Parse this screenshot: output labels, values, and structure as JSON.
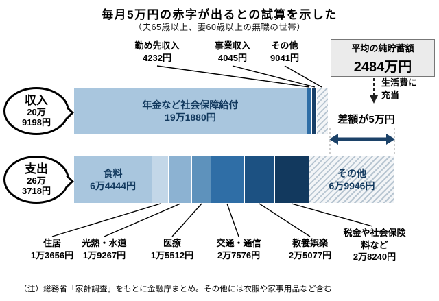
{
  "title": "毎月5万円の赤字が出るとの試算を示した",
  "subtitle": "（夫65歳以上、妻60歳以上の無職の世帯）",
  "note": "（注）総務省「家計調査」をもとに金融庁まとめ。その他には衣服や家事用品など含む",
  "savings": {
    "label": "平均の純貯蓄額",
    "value": "2484万円",
    "arrow_note_line1": "生活費に",
    "arrow_note_line2": "充当"
  },
  "gap": {
    "label": "差額が5万円"
  },
  "chart_data": {
    "type": "bar",
    "title": "毎月5万円の赤字が出るとの試算を示した",
    "unit": "円（月額）",
    "accent_colors": {
      "arrow_navy": "#1c4268",
      "bar_light_blue": "#a9c6de",
      "bar_dark_navy": "#12395e"
    },
    "income": {
      "label": "収入",
      "total_value": 209198,
      "total_display_lines": [
        "20万",
        "9198円"
      ],
      "segments": [
        {
          "name": "年金など社会保障給付",
          "value": 191880,
          "display": "19万1880円",
          "color": "#a9c6de",
          "in_bar_label": true
        },
        {
          "name": "勤め先収入",
          "value": 4232,
          "display": "4232円",
          "color": "#2f6ea6"
        },
        {
          "name": "事業収入",
          "value": 4045,
          "display": "4045円",
          "color": "#173f68"
        },
        {
          "name": "その他",
          "value": 9041,
          "display": "9041円",
          "hatched": true
        }
      ]
    },
    "expense": {
      "label": "支出",
      "total_value": 263718,
      "total_display_lines": [
        "26万",
        "3718円"
      ],
      "segments": [
        {
          "name": "食料",
          "value": 64444,
          "display": "6万4444円",
          "color": "#a9c6de",
          "in_bar_label": true
        },
        {
          "name": "住居",
          "value": 13656,
          "display": "1万3656円",
          "color": "#c3d7e8"
        },
        {
          "name": "光熱・水道",
          "value": 19267,
          "display": "1万9267円",
          "color": "#8cb2d2"
        },
        {
          "name": "医療",
          "value": 15512,
          "display": "1万5512円",
          "color": "#5e92bc"
        },
        {
          "name": "交通・通信",
          "value": 27576,
          "display": "2万7576円",
          "color": "#2f6ea6"
        },
        {
          "name": "教養娯楽",
          "value": 25077,
          "display": "2万5077円",
          "color": "#1c5182"
        },
        {
          "name": "税金や社会保険料など",
          "value": 28240,
          "display": "2万8240円",
          "color": "#12395e"
        },
        {
          "name": "その他",
          "value": 69946,
          "display": "6万9946円",
          "hatched": true,
          "in_bar_label": true
        }
      ]
    }
  }
}
